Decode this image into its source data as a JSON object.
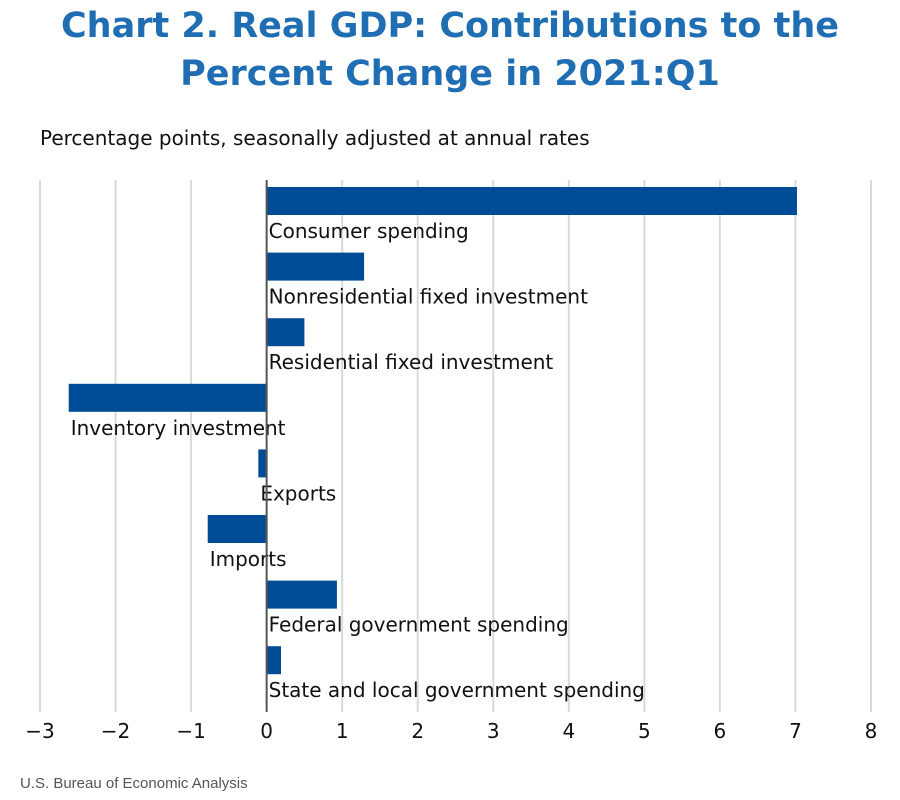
{
  "chart_data": {
    "type": "bar",
    "orientation": "horizontal",
    "title": "Chart 2. Real GDP: Contributions to the Percent Change in 2021:Q1",
    "title_lines": [
      "Chart 2. Real GDP: Contributions to the",
      "Percent Change in 2021:Q1"
    ],
    "subtitle": "Percentage points, seasonally adjusted at annual rates",
    "categories": [
      "Consumer spending",
      "Nonresidential fixed investment",
      "Residential fixed investment",
      "Inventory investment",
      "Exports",
      "Imports",
      "Federal government spending",
      "State and local government spending"
    ],
    "values": [
      7.02,
      1.29,
      0.5,
      -2.62,
      -0.11,
      -0.78,
      0.93,
      0.19
    ],
    "xlim": [
      -3,
      8
    ],
    "xticks": [
      "−3",
      "−2",
      "−1",
      "0",
      "1",
      "2",
      "3",
      "4",
      "5",
      "6",
      "7",
      "8"
    ],
    "grid": true,
    "bar_color": "#004c97",
    "title_color": "#1f6db3",
    "source": "U.S. Bureau of Economic Analysis"
  }
}
